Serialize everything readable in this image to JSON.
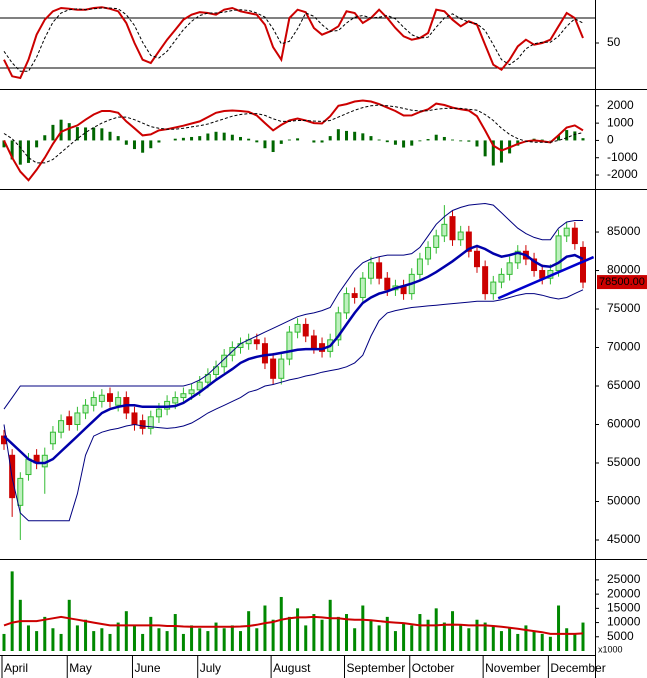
{
  "chart_data": [
    {
      "type": "line",
      "ylim": [
        -4,
        101.6
      ],
      "yticks": [
        50
      ],
      "levels": [
        80,
        20
      ],
      "series": [
        {
          "color": "#cc0000",
          "values": [
            30,
            10,
            8,
            30,
            60,
            78,
            88,
            92,
            91,
            90,
            90,
            92,
            93,
            91,
            88,
            74,
            50,
            30,
            26,
            40,
            54,
            66,
            78,
            84,
            87,
            86,
            84,
            90,
            92,
            88,
            86,
            84,
            72,
            45,
            30,
            80,
            90,
            87,
            68,
            60,
            64,
            70,
            88,
            86,
            74,
            80,
            90,
            80,
            68,
            58,
            54,
            56,
            62,
            90,
            88,
            78,
            70,
            76,
            72,
            48,
            24,
            18,
            30,
            46,
            54,
            48,
            50,
            54,
            70,
            86,
            80,
            56
          ]
        },
        {
          "color": "#000000",
          "dash": true,
          "values": [
            40,
            26,
            16,
            16,
            33,
            56,
            75,
            86,
            90,
            91,
            90,
            91,
            92,
            92,
            91,
            84,
            71,
            51,
            35,
            32,
            40,
            53,
            66,
            76,
            83,
            86,
            86,
            87,
            89,
            90,
            89,
            86,
            81,
            67,
            49,
            52,
            67,
            86,
            82,
            72,
            64,
            65,
            74,
            81,
            83,
            80,
            81,
            83,
            79,
            69,
            60,
            56,
            57,
            69,
            80,
            85,
            79,
            75,
            73,
            65,
            48,
            30,
            24,
            31,
            43,
            49,
            51,
            51,
            58,
            70,
            79,
            74
          ]
        }
      ]
    },
    {
      "type": "macd",
      "ylim": [
        -2750,
        2800
      ],
      "yticks": [
        2000,
        1000,
        0,
        -1000,
        -2000
      ],
      "histogram_color": "#006600",
      "histogram": [
        -400,
        -1100,
        -1400,
        -1300,
        -400,
        300,
        900,
        1200,
        1000,
        770,
        750,
        750,
        700,
        500,
        250,
        -250,
        -500,
        -710,
        -450,
        -120,
        0,
        100,
        150,
        200,
        250,
        400,
        500,
        450,
        330,
        200,
        100,
        -110,
        -450,
        -670,
        -200,
        50,
        120,
        0,
        -120,
        -120,
        250,
        650,
        550,
        500,
        410,
        250,
        50,
        -100,
        -250,
        -410,
        -300,
        -50,
        80,
        330,
        200,
        50,
        -50,
        -70,
        -350,
        -920,
        -1450,
        -1280,
        -750,
        -300,
        0,
        100,
        50,
        -15,
        300,
        600,
        520,
        130
      ],
      "series": [
        {
          "color": "#cc0000",
          "values": [
            0,
            -1000,
            -1800,
            -2300,
            -1700,
            -1000,
            -200,
            500,
            700,
            870,
            1200,
            1500,
            1700,
            1700,
            1600,
            1100,
            700,
            290,
            350,
            580,
            650,
            750,
            850,
            980,
            1100,
            1350,
            1600,
            1700,
            1730,
            1700,
            1650,
            1440,
            1000,
            580,
            900,
            1150,
            1270,
            1150,
            1000,
            980,
            1400,
            2000,
            2100,
            2250,
            2310,
            2250,
            2100,
            1900,
            1700,
            1440,
            1450,
            1650,
            1800,
            2130,
            2050,
            1900,
            1800,
            1730,
            1400,
            580,
            -300,
            -580,
            -400,
            -200,
            -50,
            0,
            -50,
            -115,
            300,
            750,
            870,
            580
          ]
        },
        {
          "color": "#000000",
          "dash": true,
          "values": [
            400,
            100,
            -400,
            -1000,
            -1300,
            -1300,
            -1100,
            -700,
            -300,
            100,
            450,
            750,
            1000,
            1200,
            1350,
            1350,
            1200,
            1000,
            800,
            700,
            650,
            650,
            700,
            780,
            850,
            950,
            1100,
            1250,
            1400,
            1500,
            1550,
            1550,
            1450,
            1250,
            1100,
            1100,
            1150,
            1150,
            1120,
            1100,
            1150,
            1350,
            1550,
            1750,
            1900,
            2000,
            2050,
            2000,
            1950,
            1850,
            1750,
            1700,
            1720,
            1800,
            1850,
            1850,
            1850,
            1800,
            1750,
            1500,
            1150,
            700,
            350,
            100,
            -50,
            -100,
            -100,
            -100,
            0,
            150,
            350,
            450
          ]
        }
      ]
    },
    {
      "type": "candlestick",
      "ylim": [
        42660,
        90200
      ],
      "yticks": [
        85000,
        80000,
        75000,
        70000,
        65000,
        60000,
        55000,
        50000,
        45000
      ],
      "up_color": "#33bb33",
      "down_color": "#cc0000",
      "open": [
        58500,
        56000,
        49500,
        53500,
        56000,
        54500,
        57500,
        59000,
        61000,
        60000,
        61500,
        62500,
        63000,
        64000,
        62500,
        63500,
        61500,
        60500,
        59500,
        61000,
        62000,
        62800,
        63500,
        64000,
        64500,
        65500,
        66500,
        67500,
        69000,
        70000,
        70500,
        71000,
        70500,
        68500,
        66000,
        68500,
        72000,
        73000,
        71500,
        70500,
        69500,
        71000,
        74500,
        77000,
        76500,
        79000,
        81000,
        79000,
        77500,
        78000,
        77000,
        79500,
        81500,
        83000,
        84500,
        87000,
        84000,
        85000,
        82500,
        80500,
        77000,
        78500,
        79500,
        81000,
        82500,
        81500,
        80000,
        79000,
        80000,
        84500,
        85500,
        83000
      ],
      "high": [
        59300,
        56800,
        53800,
        56300,
        56800,
        57000,
        59800,
        61300,
        61800,
        62300,
        63300,
        64300,
        64600,
        64800,
        64300,
        64300,
        62300,
        61300,
        61800,
        62800,
        63800,
        64300,
        64800,
        65300,
        66300,
        67300,
        68300,
        69800,
        70800,
        71300,
        71800,
        71800,
        71300,
        69300,
        69300,
        72800,
        73800,
        73800,
        72300,
        71300,
        71800,
        75300,
        77800,
        77800,
        79800,
        81800,
        81800,
        79800,
        78800,
        78800,
        80300,
        82300,
        83800,
        85300,
        88500,
        87800,
        85800,
        85800,
        83300,
        81300,
        79300,
        80300,
        81800,
        83300,
        83300,
        82300,
        80800,
        80800,
        85300,
        86300,
        86300,
        83800
      ],
      "low": [
        56700,
        48000,
        45000,
        52700,
        54200,
        51000,
        56700,
        58200,
        59200,
        59200,
        60700,
        61700,
        62200,
        62200,
        61700,
        60700,
        59200,
        58700,
        58700,
        60200,
        61200,
        62000,
        62700,
        63200,
        63700,
        64700,
        65700,
        66700,
        68200,
        69200,
        69700,
        69700,
        67200,
        65200,
        65200,
        67700,
        71200,
        70700,
        69200,
        68700,
        68700,
        70200,
        73700,
        75700,
        75700,
        78200,
        78200,
        76700,
        76700,
        76200,
        76200,
        78700,
        80700,
        82200,
        83700,
        83200,
        83200,
        81700,
        79700,
        76200,
        76200,
        77700,
        78700,
        80200,
        80700,
        79200,
        78200,
        78200,
        79200,
        83700,
        82700,
        77700
      ],
      "close": [
        57500,
        50500,
        53000,
        55500,
        55000,
        56000,
        59000,
        60500,
        60000,
        61500,
        62500,
        63500,
        63800,
        63000,
        63500,
        61500,
        60000,
        59500,
        61000,
        62000,
        63000,
        63500,
        64000,
        64500,
        65500,
        66500,
        67500,
        69000,
        70000,
        70500,
        71000,
        70500,
        68000,
        66000,
        68500,
        72000,
        73000,
        71500,
        70000,
        69500,
        71000,
        74500,
        77000,
        76500,
        79000,
        81000,
        79000,
        77500,
        78000,
        77000,
        79500,
        81500,
        83000,
        84500,
        86000,
        84000,
        85000,
        82500,
        80500,
        77000,
        78500,
        79500,
        81000,
        82500,
        81500,
        80000,
        79000,
        80000,
        84500,
        85500,
        83500,
        78500
      ],
      "series": [
        {
          "color": "#000080",
          "values": [
            62000,
            63500,
            65000,
            65000,
            65000,
            65000,
            65000,
            65000,
            65000,
            65000,
            65000,
            65000,
            65000,
            65000,
            65000,
            65000,
            65000,
            65000,
            65000,
            65000,
            65000,
            65000,
            65000,
            65300,
            65800,
            66500,
            67500,
            68500,
            69500,
            70500,
            71000,
            71500,
            72000,
            72500,
            73000,
            73500,
            74000,
            74300,
            74500,
            74800,
            75200,
            77000,
            78500,
            80000,
            81000,
            81500,
            81800,
            82000,
            82000,
            82000,
            82200,
            83000,
            84500,
            86000,
            87000,
            87800,
            88200,
            88500,
            88600,
            88700,
            88500,
            87500,
            86500,
            85500,
            84800,
            84300,
            84000,
            84000,
            85500,
            86300,
            86500,
            86500
          ]
        },
        {
          "color": "#000080",
          "values": [
            60000,
            53000,
            48500,
            47500,
            47500,
            47500,
            47500,
            47500,
            47500,
            51000,
            56000,
            58500,
            59000,
            59300,
            59500,
            59800,
            60000,
            59800,
            59700,
            59600,
            59500,
            59600,
            59800,
            60200,
            60800,
            61500,
            62000,
            62500,
            63000,
            63500,
            64200,
            64500,
            65000,
            65200,
            65500,
            65800,
            66000,
            66300,
            66500,
            66800,
            67000,
            67200,
            67500,
            68000,
            69000,
            71500,
            73500,
            74500,
            74800,
            75000,
            75200,
            75300,
            75400,
            75500,
            75600,
            75700,
            75800,
            75900,
            76000,
            76000,
            76000,
            76200,
            76500,
            76800,
            77000,
            77000,
            76800,
            76500,
            76300,
            76500,
            77000,
            77500
          ]
        },
        {
          "color": "#0000aa",
          "thick": true,
          "values": [
            58500,
            57500,
            56500,
            55500,
            55000,
            55000,
            55500,
            56500,
            57500,
            58500,
            59500,
            60500,
            61500,
            62000,
            62300,
            62500,
            62500,
            62300,
            62300,
            62300,
            62300,
            62400,
            62800,
            63500,
            64200,
            65000,
            65800,
            66500,
            67200,
            68000,
            68500,
            68800,
            69000,
            69100,
            69300,
            69500,
            69700,
            69800,
            69800,
            69800,
            70200,
            71500,
            73000,
            74500,
            75800,
            76500,
            77000,
            77300,
            77700,
            78000,
            78300,
            78700,
            79200,
            79800,
            80500,
            81200,
            82000,
            82800,
            83200,
            82800,
            82200,
            81800,
            82000,
            82300,
            82000,
            81200,
            80600,
            80500,
            81000,
            81800,
            82000,
            81500
          ]
        }
      ],
      "trendline": {
        "color": "#0000cc",
        "x": [
          60.6,
          72.3
        ],
        "values": [
          76400,
          81750
        ]
      },
      "last_price": {
        "value": 78500,
        "label": "78500.00",
        "color": "#cc0000"
      }
    },
    {
      "type": "volume",
      "ylim": [
        0,
        31300
      ],
      "yticks": [
        25000,
        20000,
        15000,
        10000,
        5000
      ],
      "unit_label": "x1000",
      "color": "#008800",
      "categories": [
        "April",
        null,
        null,
        null,
        null,
        null,
        null,
        null,
        "May",
        null,
        null,
        null,
        null,
        null,
        null,
        null,
        "June",
        null,
        null,
        null,
        null,
        null,
        null,
        null,
        "July",
        null,
        null,
        null,
        null,
        null,
        null,
        null,
        null,
        "August",
        null,
        null,
        null,
        null,
        null,
        null,
        null,
        null,
        "September",
        null,
        null,
        null,
        null,
        null,
        null,
        null,
        "October",
        null,
        null,
        null,
        null,
        null,
        null,
        null,
        null,
        "November",
        null,
        null,
        null,
        null,
        null,
        null,
        null,
        "December",
        null,
        null,
        null,
        null
      ],
      "values": [
        6000,
        28000,
        18000,
        9000,
        7000,
        12000,
        8000,
        6000,
        18000,
        9000,
        11000,
        7000,
        8000,
        6000,
        10000,
        14000,
        9000,
        6000,
        12000,
        8000,
        7000,
        13000,
        6000,
        9000,
        8000,
        7000,
        10000,
        8000,
        9000,
        7000,
        14000,
        8000,
        16000,
        11000,
        19000,
        12000,
        15000,
        9000,
        13000,
        11000,
        18000,
        12000,
        13000,
        8000,
        16000,
        11000,
        9000,
        12000,
        7000,
        10000,
        9000,
        13000,
        11000,
        15000,
        10000,
        14000,
        9000,
        8000,
        11000,
        10000,
        9000,
        7000,
        8000,
        6000,
        9000,
        7000,
        6000,
        5000,
        16000,
        8000,
        6000,
        10000
      ],
      "series": [
        {
          "color": "#cc0000",
          "values": [
            9000,
            10000,
            10500,
            10500,
            10500,
            11000,
            11500,
            12000,
            11500,
            11000,
            10500,
            10000,
            9500,
            9000,
            9000,
            9000,
            9000,
            9000,
            9000,
            9000,
            8800,
            8800,
            8600,
            8500,
            8500,
            8500,
            8500,
            8500,
            8500,
            8600,
            8800,
            9200,
            9800,
            10200,
            11000,
            11500,
            11800,
            11800,
            12000,
            11800,
            11500,
            11500,
            11200,
            11000,
            11000,
            10800,
            10500,
            10200,
            10000,
            9800,
            9400,
            9000,
            9000,
            9000,
            9200,
            9300,
            9200,
            9000,
            9000,
            9000,
            8800,
            8500,
            8200,
            7800,
            7400,
            7000,
            6600,
            6000,
            6000,
            6000,
            6000,
            6200
          ]
        }
      ]
    }
  ]
}
